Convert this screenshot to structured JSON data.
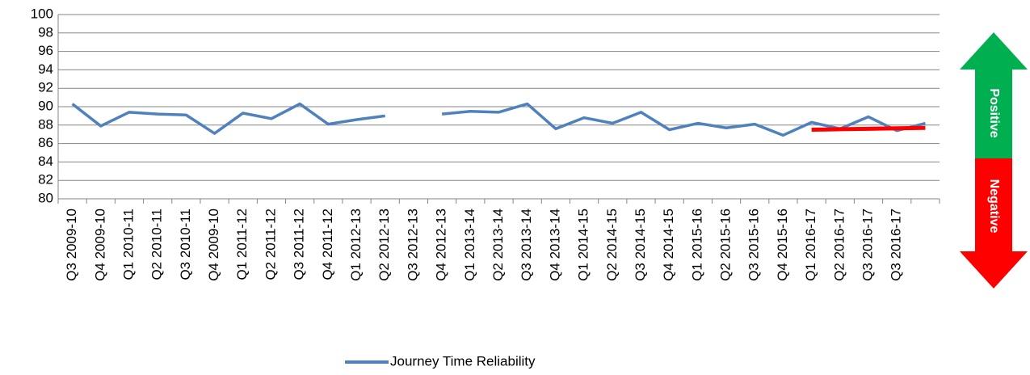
{
  "chart_data": {
    "type": "line",
    "categories": [
      "Q3 2009-10",
      "Q4 2009-10",
      "Q1 2010-11",
      "Q2 2010-11",
      "Q3 2010-11",
      "Q4 2009-10",
      "Q1 2011-12",
      "Q2 2011-12",
      "Q3 2011-12",
      "Q4 2011-12",
      "Q1 2012-13",
      "Q2 2012-13",
      "Q3 2012-13",
      "Q4 2012-13",
      "Q1 2013-14",
      "Q2 2013-14",
      "Q3 2013-14",
      "Q4 2013-14",
      "Q1 2014-15",
      "Q2 2014-15",
      "Q3 2014-15",
      "Q4 2014-15",
      "Q1 2015-16",
      "Q2 2015-16",
      "Q3 2015-16",
      "Q4 2015-16",
      "Q1 2016-17",
      "Q2 2016-17",
      "Q3 2016-17",
      "Q3 2016-17",
      null
    ],
    "series": [
      {
        "name": "Journey Time Reliability",
        "color": "#4f81bd",
        "values": [
          90.3,
          87.9,
          89.4,
          89.2,
          89.1,
          87.1,
          89.3,
          88.7,
          90.3,
          88.1,
          88.6,
          89.0,
          null,
          89.2,
          89.5,
          89.4,
          90.3,
          87.6,
          88.8,
          88.2,
          89.4,
          87.5,
          88.2,
          87.7,
          88.1,
          86.9,
          88.3,
          87.6,
          88.9,
          87.4,
          88.2
        ]
      },
      {
        "color": "#ff0000",
        "values": [
          null,
          null,
          null,
          null,
          null,
          null,
          null,
          null,
          null,
          null,
          null,
          null,
          null,
          null,
          null,
          null,
          null,
          null,
          null,
          null,
          null,
          null,
          null,
          null,
          null,
          null,
          87.5,
          87.55,
          87.6,
          87.65,
          87.7
        ]
      }
    ],
    "ylim": [
      80,
      100
    ],
    "yticks": [
      80,
      82,
      84,
      86,
      88,
      90,
      92,
      94,
      96,
      98,
      100
    ],
    "grid": true,
    "legend": "bottom",
    "positive_label": "Positive",
    "negative_label": "Negative"
  }
}
